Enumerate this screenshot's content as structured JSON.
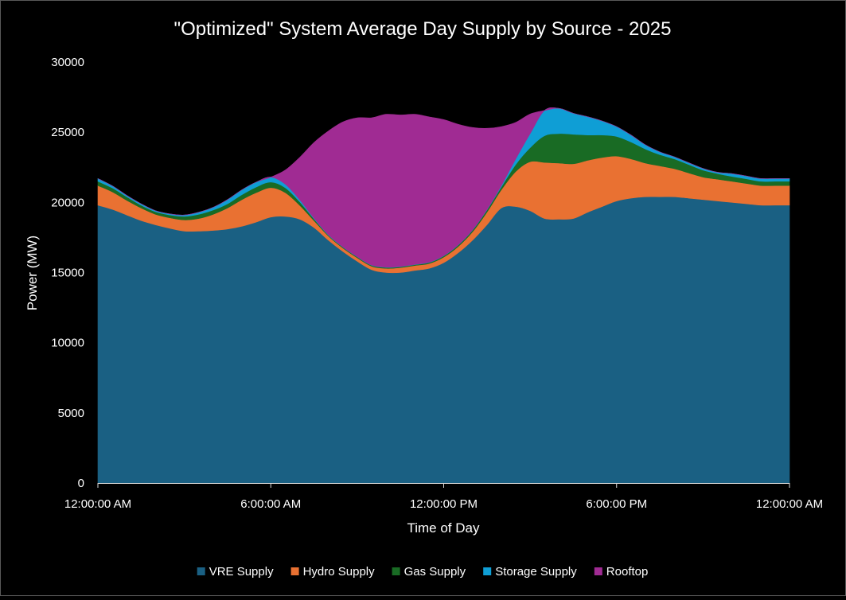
{
  "chart_data": {
    "type": "area",
    "stacked": true,
    "title": "\"Optimized\" System Average Day Supply by Source - 2025",
    "xlabel": "Time of Day",
    "ylabel": "Power (MW)",
    "ylim": [
      0,
      30000
    ],
    "yticks": [
      0,
      5000,
      10000,
      15000,
      20000,
      25000,
      30000
    ],
    "ytick_labels": [
      "0",
      "5000",
      "10000",
      "15000",
      "20000",
      "25000",
      "30000"
    ],
    "xlim": [
      0,
      24
    ],
    "xticks": [
      0,
      6,
      12,
      18,
      24
    ],
    "xtick_labels": [
      "12:00:00 AM",
      "6:00:00 AM",
      "12:00:00 PM",
      "6:00:00 PM",
      "12:00:00 AM"
    ],
    "grid": false,
    "legend_position": "bottom",
    "x": [
      0,
      0.5,
      1,
      1.5,
      2,
      2.5,
      3,
      3.5,
      4,
      4.5,
      5,
      5.5,
      6,
      6.5,
      7,
      7.5,
      8,
      8.5,
      9,
      9.5,
      10,
      10.5,
      11,
      11.5,
      12,
      12.5,
      13,
      13.5,
      14,
      14.5,
      15,
      15.5,
      16,
      16.5,
      17,
      17.5,
      18,
      18.5,
      19,
      19.5,
      20,
      20.5,
      21,
      21.5,
      22,
      22.5,
      23,
      23.5,
      24
    ],
    "series": [
      {
        "name": "VRE Supply",
        "color": "#1a6083",
        "values": [
          19800,
          19500,
          19100,
          18700,
          18400,
          18150,
          17950,
          17950,
          18000,
          18100,
          18300,
          18600,
          18950,
          19000,
          18800,
          18200,
          17300,
          16500,
          15800,
          15200,
          15000,
          15000,
          15150,
          15300,
          15700,
          16400,
          17300,
          18400,
          19600,
          19700,
          19400,
          18850,
          18800,
          18850,
          19300,
          19700,
          20100,
          20300,
          20400,
          20400,
          20400,
          20300,
          20200,
          20100,
          20000,
          19900,
          19800,
          19800,
          19800
        ]
      },
      {
        "name": "Hydro Supply",
        "color": "#e97132",
        "values": [
          1400,
          1250,
          1050,
          900,
          750,
          750,
          800,
          900,
          1150,
          1500,
          1900,
          2100,
          2100,
          1700,
          1000,
          500,
          300,
          250,
          250,
          250,
          300,
          350,
          350,
          350,
          400,
          450,
          600,
          900,
          1300,
          2500,
          3500,
          4000,
          4000,
          3900,
          3700,
          3500,
          3200,
          2800,
          2400,
          2200,
          2000,
          1800,
          1600,
          1550,
          1500,
          1450,
          1400,
          1400,
          1400
        ]
      },
      {
        "name": "Gas Supply",
        "color": "#196b24",
        "values": [
          300,
          280,
          250,
          200,
          180,
          200,
          250,
          300,
          300,
          300,
          350,
          400,
          400,
          350,
          250,
          120,
          60,
          60,
          60,
          60,
          60,
          60,
          60,
          70,
          80,
          100,
          120,
          150,
          200,
          500,
          1000,
          1900,
          2100,
          2100,
          1800,
          1600,
          1400,
          1200,
          1000,
          800,
          700,
          600,
          500,
          400,
          350,
          330,
          300,
          300,
          300
        ]
      },
      {
        "name": "Storage Supply",
        "color": "#0f9ed5",
        "values": [
          200,
          150,
          100,
          100,
          80,
          80,
          100,
          150,
          200,
          300,
          350,
          350,
          350,
          250,
          150,
          50,
          30,
          20,
          20,
          20,
          20,
          20,
          20,
          20,
          20,
          20,
          20,
          30,
          100,
          400,
          1000,
          1800,
          1800,
          1500,
          1300,
          1000,
          700,
          500,
          300,
          200,
          150,
          130,
          120,
          100,
          200,
          200,
          200,
          200,
          200
        ]
      },
      {
        "name": "Rooftop",
        "color": "#a02b93",
        "values": [
          0,
          0,
          0,
          0,
          0,
          0,
          0,
          0,
          0,
          0,
          0,
          0,
          0,
          1000,
          3000,
          5400,
          7400,
          8900,
          9900,
          10500,
          10900,
          10800,
          10700,
          10350,
          9700,
          8600,
          7300,
          5800,
          4200,
          2600,
          1400,
          0,
          0,
          0,
          0,
          0,
          0,
          0,
          0,
          0,
          0,
          0,
          0,
          0,
          0,
          0,
          0,
          0,
          0
        ]
      }
    ]
  }
}
